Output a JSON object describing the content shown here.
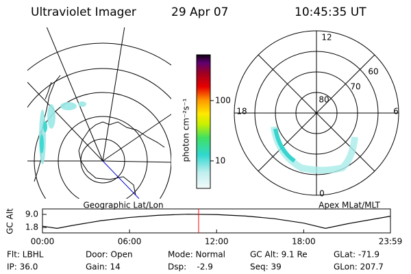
{
  "header": {
    "title": "Ultraviolet Imager",
    "date": "29 Apr 07",
    "time": "10:45:35 UT"
  },
  "left_panel": {
    "label": "Geographic Lat/Lon"
  },
  "right_panel": {
    "label": "Apex MLat/MLT",
    "mlt_labels": [
      "12",
      "18",
      "6",
      "0"
    ],
    "lat_labels": [
      "80",
      "70",
      "60"
    ]
  },
  "colorbar": {
    "label": "photon cm⁻²s⁻¹",
    "log": true,
    "ylim": [
      3.5,
      575
    ],
    "yticks": [
      10,
      100
    ]
  },
  "altitude_chart": {
    "type": "line",
    "ylabel": "GC Alt",
    "color": "#000000",
    "x": [
      0,
      1,
      2,
      4,
      6,
      8,
      10,
      12,
      14,
      16,
      18,
      19.5,
      21,
      23.98
    ],
    "values": [
      2.5,
      1.3,
      2.8,
      5.5,
      7.3,
      8.5,
      9.1,
      8.9,
      8.1,
      6.6,
      4.2,
      1.3,
      3.8,
      8.0
    ],
    "xlim": [
      0,
      23.98
    ],
    "ylim": [
      -1.2,
      12
    ],
    "yticks": [
      1.8,
      {
        "value": 9,
        "label": "9.0"
      }
    ],
    "xticks": [
      {
        "value": 0,
        "label": "00:00"
      },
      {
        "value": 6,
        "label": "06:00"
      },
      {
        "value": 12,
        "label": "12:00"
      },
      {
        "value": 18,
        "label": "18:00"
      },
      {
        "value": 23.98,
        "label": "23:59"
      }
    ],
    "current_time": 10.76,
    "marker_color": "#ff0000"
  },
  "footer": {
    "rows": [
      [
        "Flt: LBHL",
        "Door: Open",
        "Mode: Normal",
        "GC Alt: 9.1 Re",
        "GLat: -71.9"
      ],
      [
        "IP: 36.0",
        "Gain: 14",
        "Dsp:    -2.9",
        "Seq: 39",
        "GLon: 207.7"
      ]
    ]
  }
}
